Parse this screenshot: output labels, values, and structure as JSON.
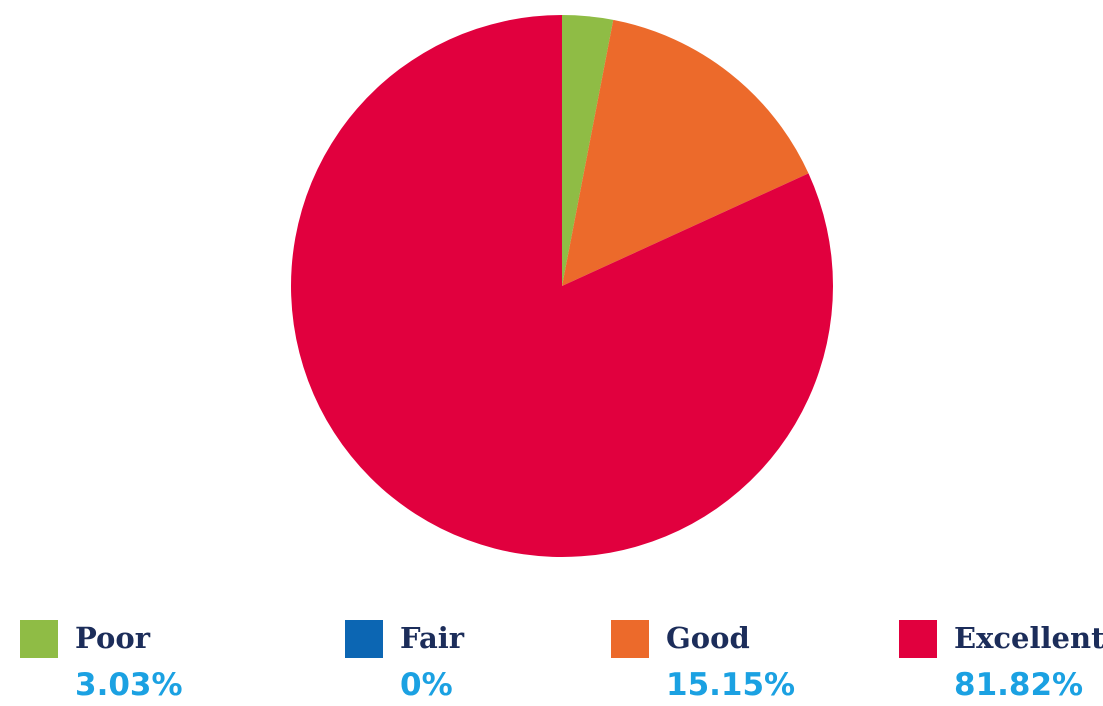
{
  "chart_data": {
    "type": "pie",
    "categories": [
      "Poor",
      "Fair",
      "Good",
      "Excellent"
    ],
    "values": [
      3.03,
      0,
      15.15,
      81.82
    ],
    "value_labels": [
      "3.03%",
      "0%",
      "15.15%",
      "81.82%"
    ],
    "colors": [
      "#8fbc45",
      "#0c66b3",
      "#ec6a2b",
      "#e1003e"
    ],
    "start_angle": "12 o'clock",
    "direction": "clockwise",
    "legend_position": "bottom",
    "title": ""
  }
}
